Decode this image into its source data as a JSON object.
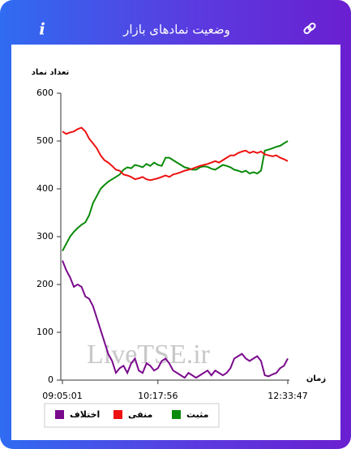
{
  "header": {
    "title": "وضعیت نمادهای بازار",
    "info": "i"
  },
  "chart_data": {
    "type": "line",
    "ylabel": "تعداد نماد",
    "xlabel": "زمان",
    "watermark": "LiveTSE.ir",
    "categories": [
      "09:05:01",
      null,
      null,
      null,
      null,
      null,
      null,
      null,
      null,
      null,
      null,
      null,
      null,
      null,
      null,
      null,
      null,
      null,
      null,
      null,
      null,
      null,
      null,
      null,
      null,
      "10:17:56",
      null,
      null,
      null,
      null,
      null,
      null,
      null,
      null,
      null,
      null,
      null,
      null,
      null,
      null,
      null,
      null,
      null,
      null,
      null,
      null,
      null,
      null,
      null,
      null,
      null,
      null,
      null,
      null,
      null,
      null,
      null,
      null,
      null,
      "12:33:47"
    ],
    "series": [
      {
        "name": "مثبت",
        "color": "#0a8a0a",
        "values": [
          270,
          285,
          300,
          310,
          318,
          325,
          330,
          345,
          370,
          385,
          400,
          408,
          415,
          420,
          425,
          430,
          440,
          445,
          443,
          450,
          448,
          445,
          452,
          448,
          455,
          450,
          448,
          465,
          465,
          460,
          455,
          450,
          445,
          443,
          440,
          440,
          445,
          447,
          446,
          442,
          440,
          445,
          450,
          448,
          445,
          440,
          438,
          435,
          438,
          432,
          435,
          432,
          438,
          480,
          482,
          485,
          488,
          490,
          495,
          500
        ]
      },
      {
        "name": "منفی",
        "color": "#ee1111",
        "values": [
          520,
          515,
          518,
          520,
          525,
          528,
          520,
          505,
          495,
          485,
          470,
          460,
          455,
          448,
          440,
          438,
          430,
          428,
          425,
          420,
          422,
          425,
          420,
          418,
          420,
          422,
          425,
          428,
          425,
          430,
          432,
          435,
          438,
          440,
          442,
          445,
          448,
          450,
          452,
          455,
          458,
          455,
          460,
          465,
          470,
          470,
          475,
          478,
          480,
          475,
          478,
          475,
          478,
          472,
          470,
          468,
          470,
          465,
          462,
          458
        ]
      },
      {
        "name": "اختلاف",
        "color": "#7a0a8c",
        "values": [
          250,
          230,
          215,
          195,
          200,
          195,
          175,
          170,
          155,
          130,
          105,
          80,
          55,
          40,
          15,
          25,
          30,
          15,
          35,
          45,
          20,
          15,
          35,
          30,
          20,
          25,
          40,
          45,
          35,
          20,
          15,
          10,
          5,
          15,
          10,
          5,
          10,
          15,
          20,
          10,
          20,
          15,
          10,
          15,
          25,
          45,
          50,
          55,
          45,
          40,
          45,
          50,
          40,
          10,
          8,
          12,
          15,
          25,
          30,
          45
        ]
      }
    ],
    "ylim": [
      0,
      600
    ],
    "yticks": [
      0,
      100,
      200,
      300,
      400,
      500,
      600
    ]
  }
}
